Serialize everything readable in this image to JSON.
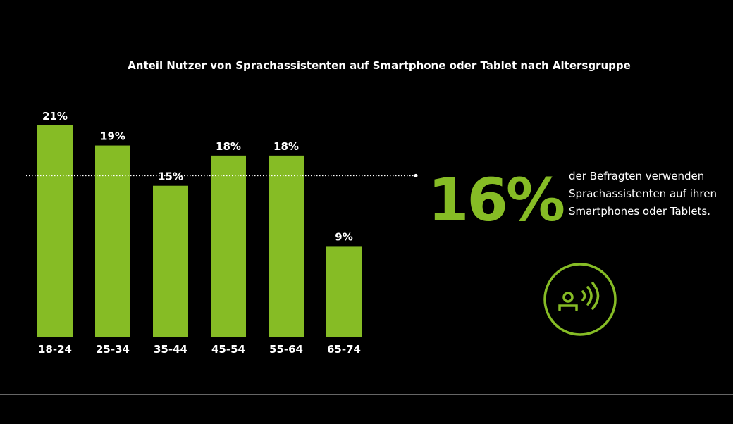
{
  "chart_data": {
    "type": "bar",
    "title": "Anteil Nutzer von Sprachassistenten auf Smartphone oder Tablet nach Altersgruppe",
    "categories": [
      "18-24",
      "25-34",
      "35-44",
      "45-54",
      "55-64",
      "65-74"
    ],
    "values": [
      21,
      19,
      15,
      18,
      18,
      9
    ],
    "value_labels": [
      "21%",
      "19%",
      "15%",
      "18%",
      "18%",
      "9%"
    ],
    "color": "#86bc25",
    "ylim": [
      0,
      21
    ],
    "reference": {
      "value": 16,
      "label": "16%"
    },
    "annotation": [
      "der Befragten verwenden",
      "Sprachassistenten auf ihren",
      "Smartphones oder Tablets."
    ]
  }
}
